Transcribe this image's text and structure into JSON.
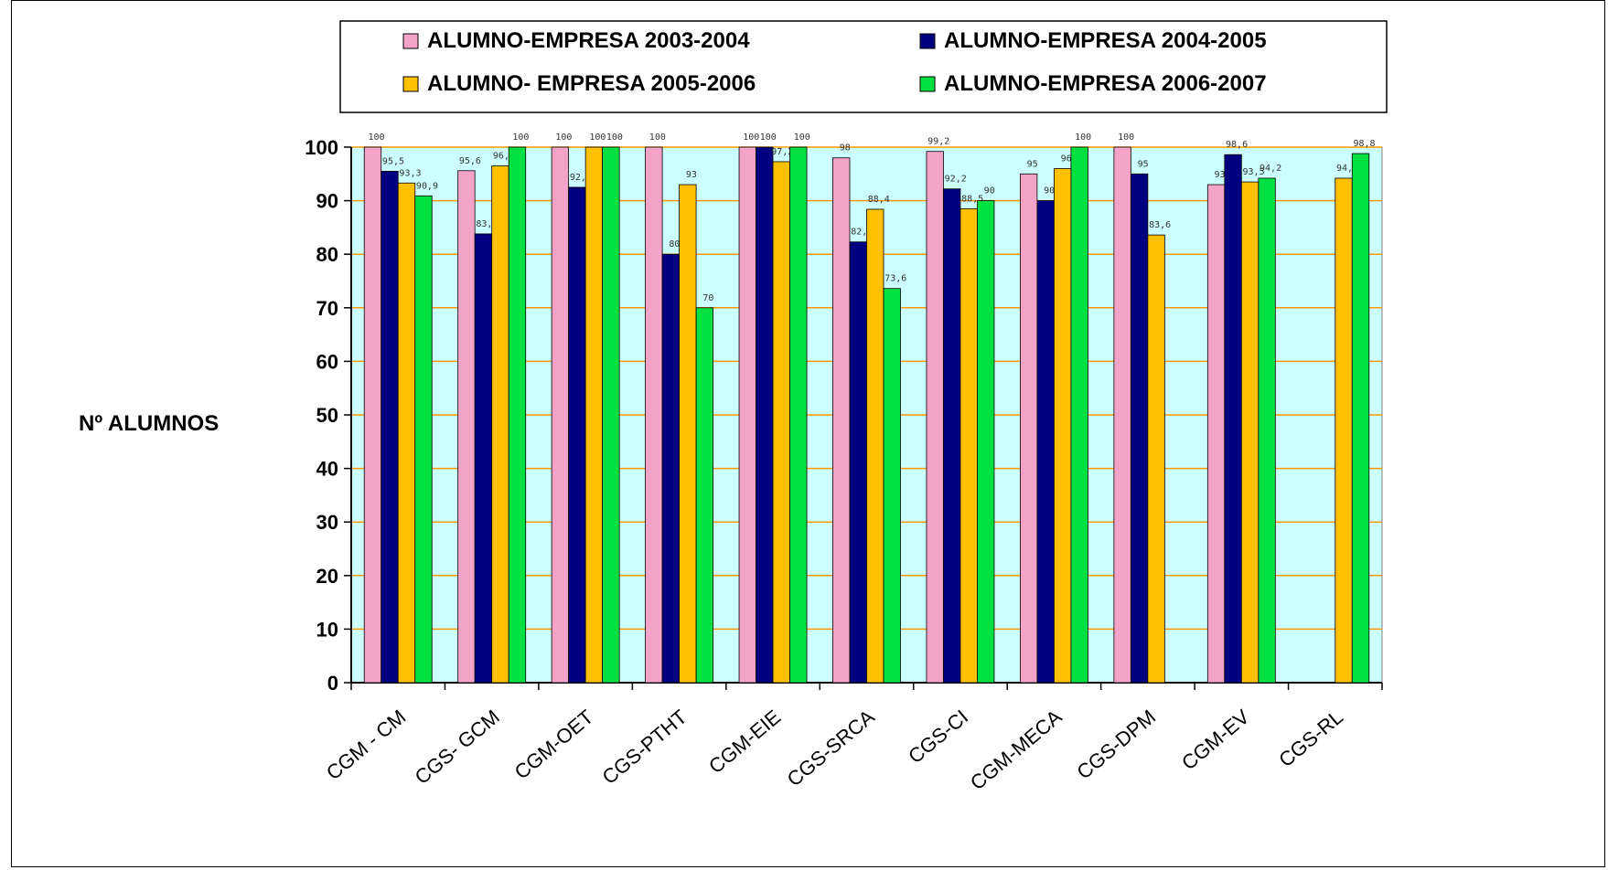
{
  "chart_data": {
    "type": "bar",
    "ylabel": "Nº ALUMNOS",
    "xlabel": "",
    "title": "",
    "ylim": [
      0,
      100
    ],
    "yticks": [
      0,
      10,
      20,
      30,
      40,
      50,
      60,
      70,
      80,
      90,
      100
    ],
    "grid": true,
    "legend_position": "top",
    "categories": [
      "CGM - CM",
      "CGS- GCM",
      "CGM-OET",
      "CGS-PTHT",
      "CGM-EIE",
      "CGS-SRCA",
      "CGS-CI",
      "CGM-MECA",
      "CGS-DPM",
      "CGM-EV",
      "CGS-RL"
    ],
    "series": [
      {
        "name": "ALUMNO-EMPRESA 2003-2004",
        "color": "#f4a3c8",
        "values": [
          100,
          95.6,
          100,
          100,
          100,
          98,
          99.2,
          95,
          100,
          93,
          null
        ],
        "labels": [
          "100",
          "95,6",
          "100",
          "100",
          "100",
          "98",
          "99,2",
          "95",
          "100",
          "93",
          ""
        ]
      },
      {
        "name": "ALUMNO-EMPRESA 2004-2005",
        "color": "#000080",
        "values": [
          95.5,
          83.8,
          92.5,
          80,
          100,
          82.3,
          92.2,
          90,
          95,
          98.6,
          null
        ],
        "labels": [
          "95,5",
          "83,8",
          "92,5",
          "80",
          "100",
          "82,3",
          "92,2",
          "90",
          "95",
          "98,6",
          ""
        ]
      },
      {
        "name": "ALUMNO- EMPRESA 2005-2006",
        "color": "#ffc000",
        "values": [
          93.3,
          96.5,
          100,
          93,
          97.28,
          88.4,
          88.5,
          96,
          83.6,
          93.5,
          94.2
        ],
        "labels": [
          "93,3",
          "96,5",
          "100",
          "93",
          "97,28",
          "88,4",
          "88,5",
          "96",
          "83,6",
          "93,5",
          "94,2"
        ]
      },
      {
        "name": "ALUMNO-EMPRESA 2006-2007",
        "color": "#00e040",
        "values": [
          90.9,
          100,
          100,
          70,
          100,
          73.6,
          90,
          100,
          null,
          94.2,
          98.8
        ],
        "labels": [
          "90,9",
          "100",
          "100",
          "70",
          "100",
          "73,6",
          "90",
          "100",
          "",
          "94,2",
          "98,8"
        ]
      }
    ]
  }
}
